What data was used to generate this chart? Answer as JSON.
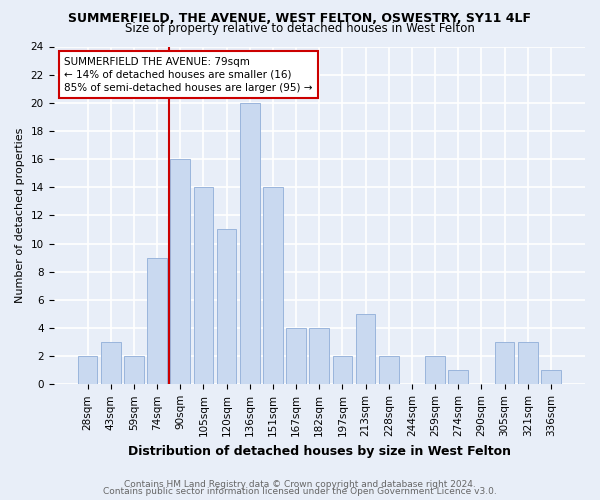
{
  "title": "SUMMERFIELD, THE AVENUE, WEST FELTON, OSWESTRY, SY11 4LF",
  "subtitle": "Size of property relative to detached houses in West Felton",
  "xlabel": "Distribution of detached houses by size in West Felton",
  "ylabel": "Number of detached properties",
  "categories": [
    "28sqm",
    "43sqm",
    "59sqm",
    "74sqm",
    "90sqm",
    "105sqm",
    "120sqm",
    "136sqm",
    "151sqm",
    "167sqm",
    "182sqm",
    "197sqm",
    "213sqm",
    "228sqm",
    "244sqm",
    "259sqm",
    "274sqm",
    "290sqm",
    "305sqm",
    "321sqm",
    "336sqm"
  ],
  "values": [
    2,
    3,
    2,
    9,
    16,
    14,
    11,
    20,
    14,
    4,
    4,
    2,
    5,
    2,
    0,
    2,
    1,
    0,
    3,
    3,
    1
  ],
  "bar_color": "#c9d9f0",
  "bar_edge_color": "#9ab5dc",
  "vline_x": 3.5,
  "annotation_line1": "SUMMERFIELD THE AVENUE: 79sqm",
  "annotation_line2": "← 14% of detached houses are smaller (16)",
  "annotation_line3": "85% of semi-detached houses are larger (95) →",
  "annotation_box_facecolor": "#ffffff",
  "annotation_box_edgecolor": "#cc0000",
  "vline_color": "#cc0000",
  "ylim": [
    0,
    24
  ],
  "yticks": [
    0,
    2,
    4,
    6,
    8,
    10,
    12,
    14,
    16,
    18,
    20,
    22,
    24
  ],
  "bg_color": "#e8eef8",
  "grid_color": "#ffffff",
  "footer_line1": "Contains HM Land Registry data © Crown copyright and database right 2024.",
  "footer_line2": "Contains public sector information licensed under the Open Government Licence v3.0.",
  "title_fontsize": 9,
  "subtitle_fontsize": 8.5,
  "ylabel_fontsize": 8,
  "xlabel_fontsize": 9,
  "tick_fontsize": 7.5,
  "footer_fontsize": 6.5,
  "footer_color": "#666666"
}
